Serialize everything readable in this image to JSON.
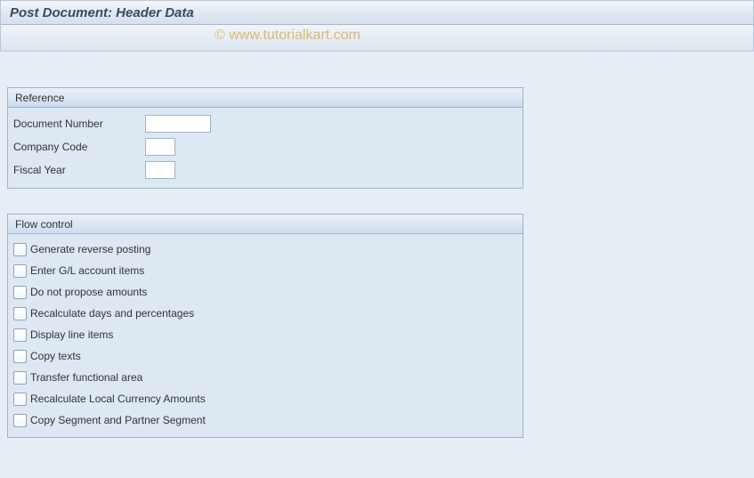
{
  "title": "Post Document: Header Data",
  "watermark": "© www.tutorialkart.com",
  "reference": {
    "header": "Reference",
    "fields": {
      "document_number": {
        "label": "Document Number",
        "value": ""
      },
      "company_code": {
        "label": "Company Code",
        "value": ""
      },
      "fiscal_year": {
        "label": "Fiscal Year",
        "value": ""
      }
    }
  },
  "flow_control": {
    "header": "Flow control",
    "items": [
      {
        "label": "Generate reverse posting"
      },
      {
        "label": "Enter G/L account items"
      },
      {
        "label": "Do not propose amounts"
      },
      {
        "label": "Recalculate days and percentages"
      },
      {
        "label": "Display line items"
      },
      {
        "label": "Copy texts"
      },
      {
        "label": "Transfer functional area"
      },
      {
        "label": "Recalculate Local Currency Amounts"
      },
      {
        "label": "Copy Segment and Partner Segment"
      }
    ]
  },
  "colors": {
    "page_bg": "#e8eef5",
    "border": "#9fb5cc",
    "panel_bg": "#dde8f3"
  }
}
